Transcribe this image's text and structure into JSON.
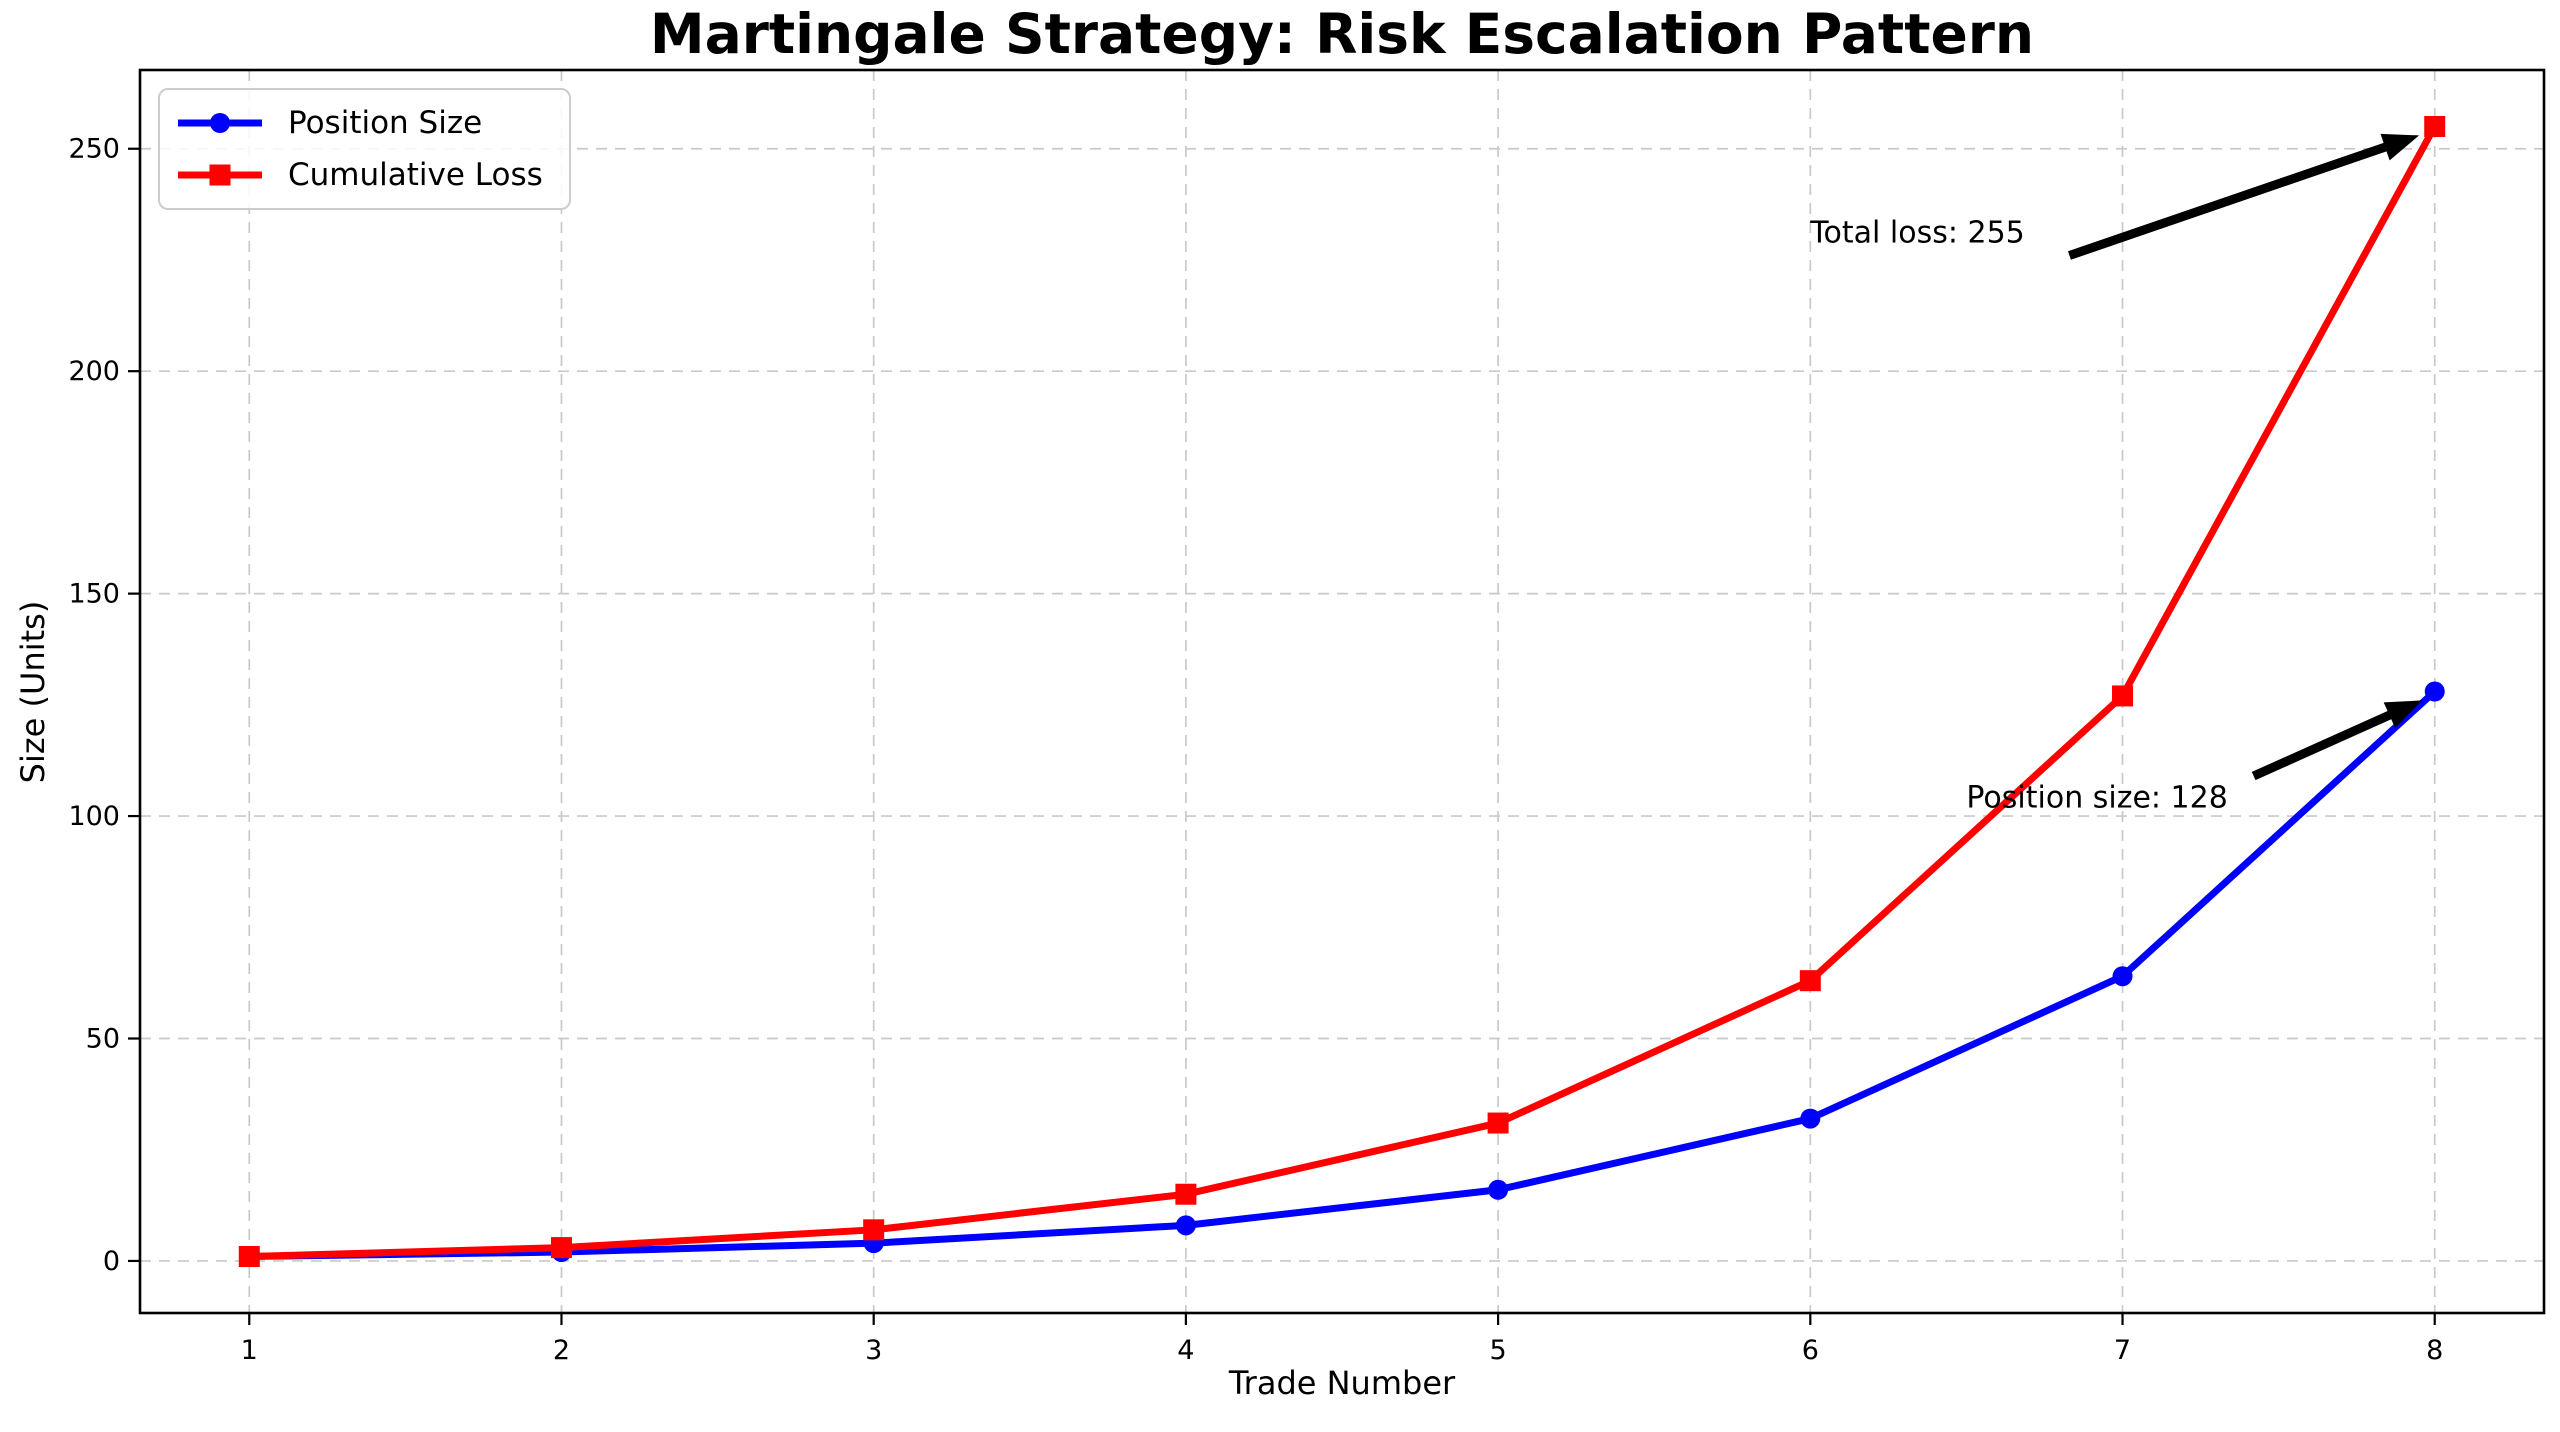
{
  "chart_data": {
    "type": "line",
    "title": "Martingale Strategy: Risk Escalation Pattern",
    "xlabel": "Trade Number",
    "ylabel": "Size (Units)",
    "x": [
      1,
      2,
      3,
      4,
      5,
      6,
      7,
      8
    ],
    "series": [
      {
        "name": "Position Size",
        "color": "#0000ff",
        "marker": "circle",
        "values": [
          1,
          2,
          4,
          8,
          16,
          32,
          64,
          128
        ]
      },
      {
        "name": "Cumulative Loss",
        "color": "#ff0000",
        "marker": "square",
        "values": [
          1,
          3,
          7,
          15,
          31,
          63,
          127,
          255
        ]
      }
    ],
    "xlim": [
      0.65,
      8.35
    ],
    "ylim": [
      -11.7,
      267.7
    ],
    "xticks": [
      1,
      2,
      3,
      4,
      5,
      6,
      7,
      8
    ],
    "yticks": [
      0,
      50,
      100,
      150,
      200,
      250
    ],
    "grid": true,
    "grid_style": "dashed",
    "legend_position": "upper left",
    "annotations": [
      {
        "text": "Total loss: 255",
        "xy": [
          8,
          255
        ],
        "xytext": [
          6.0,
          231
        ],
        "arrow": {
          "from": [
            6.83,
            226
          ],
          "to": [
            7.95,
            253
          ]
        }
      },
      {
        "text": "Position size: 128",
        "xy": [
          8,
          128
        ],
        "xytext": [
          6.5,
          104
        ],
        "arrow": {
          "from": [
            7.42,
            109
          ],
          "to": [
            7.96,
            126
          ]
        }
      }
    ],
    "colors": {
      "grid": "#c9c9c9",
      "spine": "#000000",
      "annotation_arrow": "#000000",
      "legend_border": "#cccccc"
    }
  }
}
